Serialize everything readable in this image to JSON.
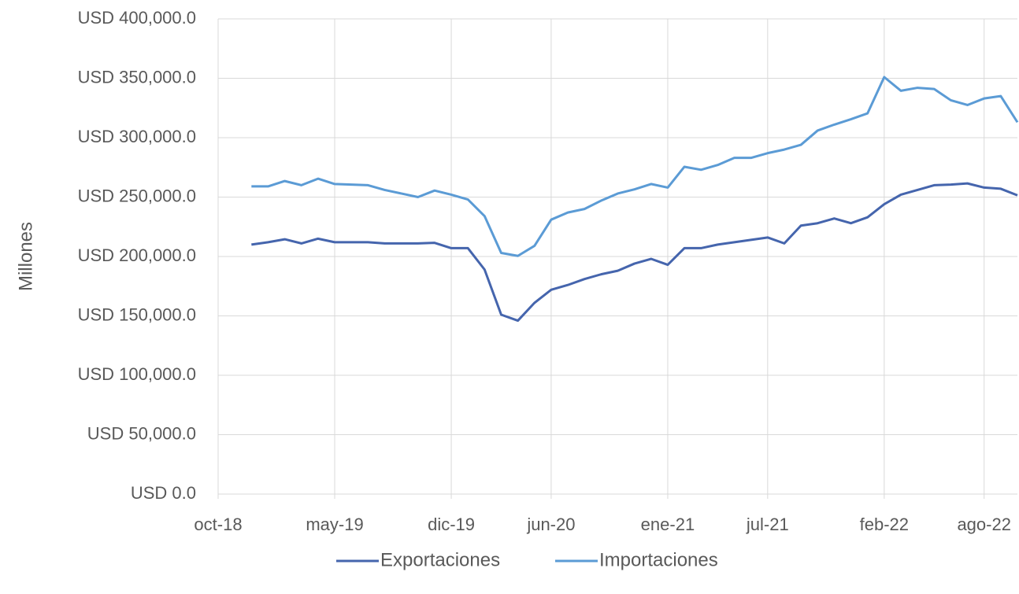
{
  "chart_data": {
    "type": "line",
    "y_label": "Millones",
    "x": [
      "2018-12",
      "2019-01",
      "2019-02",
      "2019-03",
      "2019-04",
      "2019-05",
      "2019-06",
      "2019-07",
      "2019-08",
      "2019-09",
      "2019-10",
      "2019-11",
      "2019-12",
      "2020-01",
      "2020-02",
      "2020-03",
      "2020-04",
      "2020-05",
      "2020-06",
      "2020-07",
      "2020-08",
      "2020-09",
      "2020-10",
      "2020-11",
      "2020-12",
      "2021-01",
      "2021-02",
      "2021-03",
      "2021-04",
      "2021-05",
      "2021-06",
      "2021-07",
      "2021-08",
      "2021-09",
      "2021-10",
      "2021-11",
      "2021-12",
      "2022-01",
      "2022-02",
      "2022-03",
      "2022-04",
      "2022-05",
      "2022-06",
      "2022-07",
      "2022-08",
      "2022-09",
      "2022-10"
    ],
    "series": [
      {
        "name": "Exportaciones",
        "color": "#4565ad",
        "values": [
          210000,
          212000,
          214500,
          211000,
          215000,
          212000,
          212000,
          212000,
          211000,
          211000,
          211000,
          211500,
          207000,
          207000,
          189000,
          151000,
          146000,
          161000,
          172000,
          176000,
          181000,
          185000,
          188000,
          194000,
          198000,
          193000,
          207000,
          207000,
          210000,
          212000,
          214000,
          216000,
          211000,
          226000,
          228000,
          232000,
          228000,
          233000,
          244000,
          252000,
          256000,
          260000,
          260500,
          261500,
          258000,
          257000,
          251500
        ]
      },
      {
        "name": "Importaciones",
        "color": "#5b9bd5",
        "values": [
          259000,
          259000,
          263500,
          260000,
          265500,
          261000,
          260500,
          260000,
          256000,
          253000,
          250000,
          255500,
          252000,
          248000,
          234000,
          203000,
          200500,
          209000,
          231000,
          237000,
          240000,
          247000,
          253000,
          256500,
          261000,
          258000,
          275500,
          273000,
          277000,
          283000,
          283000,
          287000,
          290000,
          294000,
          306000,
          311000,
          315500,
          320500,
          351000,
          339500,
          342000,
          341000,
          331500,
          327500,
          333000,
          335000,
          313000
        ]
      }
    ],
    "xlim": [
      "2018-10",
      "2022-10"
    ],
    "xticks": [
      {
        "value": "2018-10",
        "label": "oct-18"
      },
      {
        "value": "2019-05",
        "label": "may-19"
      },
      {
        "value": "2019-12",
        "label": "dic-19"
      },
      {
        "value": "2020-06",
        "label": "jun-20"
      },
      {
        "value": "2021-01",
        "label": "ene-21"
      },
      {
        "value": "2021-07",
        "label": "jul-21"
      },
      {
        "value": "2022-02",
        "label": "feb-22"
      },
      {
        "value": "2022-08",
        "label": "ago-22"
      }
    ],
    "ylim": [
      0,
      400000
    ],
    "yticks": [
      {
        "value": 0,
        "label": "USD 0.0"
      },
      {
        "value": 50000,
        "label": "USD 50,000.0"
      },
      {
        "value": 100000,
        "label": "USD 100,000.0"
      },
      {
        "value": 150000,
        "label": "USD 150,000.0"
      },
      {
        "value": 200000,
        "label": "USD 200,000.0"
      },
      {
        "value": 250000,
        "label": "USD 250,000.0"
      },
      {
        "value": 300000,
        "label": "USD 300,000.0"
      },
      {
        "value": 350000,
        "label": "USD 350,000.0"
      },
      {
        "value": 400000,
        "label": "USD 400,000.0"
      }
    ],
    "grid": true,
    "legend": "bottom"
  }
}
